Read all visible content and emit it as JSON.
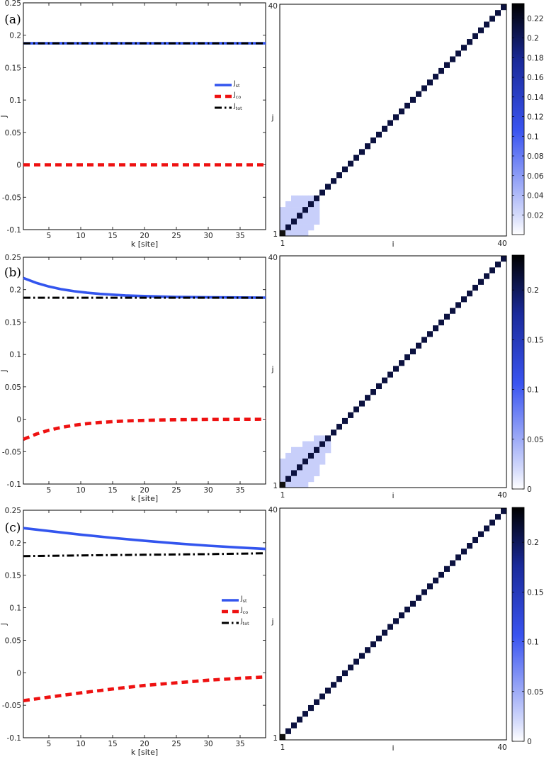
{
  "chart_data": [
    {
      "panel": "(a)",
      "type": "line",
      "xlabel": "k [site]",
      "ylabel": "J",
      "xlim": [
        1,
        39
      ],
      "ylim": [
        -0.1,
        0.25
      ],
      "xticks": [
        5,
        10,
        15,
        20,
        25,
        30,
        35
      ],
      "yticks": [
        -0.1,
        -0.05,
        0,
        0.05,
        0.1,
        0.15,
        0.2,
        0.25
      ],
      "legend": {
        "placement": "right",
        "entries": [
          {
            "main": "J",
            "sub": "st"
          },
          {
            "main": "J",
            "sub": "co"
          },
          {
            "main": "J",
            "sub": "tot"
          }
        ]
      },
      "series": [
        {
          "name": "J_st",
          "color": "#3355ee",
          "style": "solid",
          "x": [
            1,
            39
          ],
          "y": [
            0.1875,
            0.1875
          ]
        },
        {
          "name": "J_co",
          "color": "#ee1111",
          "style": "dashed",
          "x": [
            1,
            39
          ],
          "y": [
            0.0,
            0.0
          ]
        },
        {
          "name": "J_tot",
          "color": "#000000",
          "style": "dashdot",
          "x": [
            1,
            39
          ],
          "y": [
            0.1875,
            0.1875
          ]
        }
      ]
    },
    {
      "panel": "(b)",
      "type": "line",
      "xlabel": "k [site]",
      "ylabel": "J",
      "xlim": [
        1,
        39
      ],
      "ylim": [
        -0.1,
        0.25
      ],
      "xticks": [
        5,
        10,
        15,
        20,
        25,
        30,
        35
      ],
      "yticks": [
        -0.1,
        -0.05,
        0,
        0.05,
        0.1,
        0.15,
        0.2,
        0.25
      ],
      "legend": null,
      "series": [
        {
          "name": "J_st",
          "color": "#3355ee",
          "style": "solid",
          "x": [
            1,
            3,
            5,
            7,
            9,
            11,
            13,
            15,
            17,
            19,
            21,
            23,
            25,
            27,
            29,
            31,
            33,
            35,
            37,
            39
          ],
          "y": [
            0.218,
            0.2105,
            0.2048,
            0.2006,
            0.1975,
            0.1952,
            0.1935,
            0.1922,
            0.1911,
            0.1903,
            0.1897,
            0.1892,
            0.1888,
            0.1885,
            0.1883,
            0.1881,
            0.188,
            0.1879,
            0.1878,
            0.1877
          ]
        },
        {
          "name": "J_co",
          "color": "#ee1111",
          "style": "dashed",
          "x": [
            1,
            3,
            5,
            7,
            9,
            11,
            13,
            15,
            17,
            19,
            21,
            23,
            25,
            27,
            29,
            31,
            33,
            35,
            37,
            39
          ],
          "y": [
            -0.031,
            -0.023,
            -0.017,
            -0.0125,
            -0.0092,
            -0.0068,
            -0.005,
            -0.0037,
            -0.0027,
            -0.002,
            -0.0015,
            -0.0011,
            -0.0008,
            -0.0006,
            -0.0004,
            -0.0003,
            -0.0002,
            -0.0001,
            -0.0001,
            0.0
          ]
        },
        {
          "name": "J_tot",
          "color": "#000000",
          "style": "dashdot",
          "x": [
            1,
            39
          ],
          "y": [
            0.1875,
            0.1875
          ]
        }
      ]
    },
    {
      "panel": "(c)",
      "type": "line",
      "xlabel": "k [site]",
      "ylabel": "J",
      "xlim": [
        1,
        39
      ],
      "ylim": [
        -0.1,
        0.25
      ],
      "xticks": [
        5,
        10,
        15,
        20,
        25,
        30,
        35
      ],
      "yticks": [
        -0.1,
        -0.05,
        0,
        0.05,
        0.1,
        0.15,
        0.2,
        0.25
      ],
      "legend": {
        "placement": "right",
        "entries": [
          {
            "main": "J",
            "sub": "st"
          },
          {
            "main": "J",
            "sub": "co"
          },
          {
            "main": "J",
            "sub": "tot"
          }
        ]
      },
      "series": [
        {
          "name": "J_st",
          "color": "#3355ee",
          "style": "solid",
          "x": [
            1,
            5,
            10,
            15,
            20,
            25,
            30,
            35,
            39
          ],
          "y": [
            0.2225,
            0.218,
            0.2125,
            0.2075,
            0.203,
            0.199,
            0.1955,
            0.1925,
            0.1905
          ]
        },
        {
          "name": "J_co",
          "color": "#ee1111",
          "style": "dashed",
          "x": [
            1,
            5,
            10,
            15,
            20,
            25,
            30,
            35,
            39
          ],
          "y": [
            -0.043,
            -0.0375,
            -0.031,
            -0.025,
            -0.0195,
            -0.0155,
            -0.0115,
            -0.0085,
            -0.0065
          ]
        },
        {
          "name": "J_tot",
          "color": "#000000",
          "style": "dashdot",
          "x": [
            1,
            10,
            20,
            30,
            39
          ],
          "y": [
            0.1795,
            0.1805,
            0.1815,
            0.1825,
            0.1838
          ]
        }
      ]
    },
    {
      "panel": "(a)",
      "type": "heatmap",
      "xlabel": "i",
      "ylabel": "j",
      "n": 40,
      "corner_labels": {
        "x_start": "1",
        "x_end": "40",
        "y_start": "1",
        "y_end": "40"
      },
      "diagonal_value": 0.235,
      "diagonal_color": "#0c1240",
      "offdiag_cells": [
        [
          1,
          2
        ],
        [
          2,
          1
        ],
        [
          1,
          3
        ],
        [
          3,
          1
        ],
        [
          2,
          3
        ],
        [
          3,
          2
        ],
        [
          1,
          4
        ],
        [
          4,
          1
        ],
        [
          2,
          4
        ],
        [
          4,
          2
        ],
        [
          3,
          4
        ],
        [
          4,
          3
        ],
        [
          1,
          5
        ],
        [
          5,
          1
        ],
        [
          2,
          5
        ],
        [
          5,
          2
        ],
        [
          3,
          5
        ],
        [
          5,
          3
        ],
        [
          4,
          5
        ],
        [
          5,
          4
        ],
        [
          2,
          6
        ],
        [
          6,
          2
        ],
        [
          3,
          6
        ],
        [
          6,
          3
        ],
        [
          4,
          6
        ],
        [
          6,
          4
        ],
        [
          5,
          6
        ],
        [
          6,
          5
        ],
        [
          3,
          7
        ],
        [
          7,
          3
        ],
        [
          4,
          7
        ],
        [
          7,
          4
        ],
        [
          5,
          7
        ],
        [
          7,
          5
        ],
        [
          6,
          7
        ],
        [
          7,
          6
        ]
      ],
      "offdiag_value": 0.004,
      "colorbar": {
        "ticks": [
          0.02,
          0.04,
          0.06,
          0.08,
          0.1,
          0.12,
          0.14,
          0.16,
          0.18,
          0.2,
          0.22
        ],
        "labels": [
          "0.02",
          "0.04",
          "0.06",
          "0.08",
          "0.1",
          "0.12",
          "0.14",
          "0.16",
          "0.18",
          "0.2",
          "0.22"
        ],
        "range": [
          0.0,
          0.235
        ]
      }
    },
    {
      "panel": "(b)",
      "type": "heatmap",
      "xlabel": "i",
      "ylabel": "j",
      "n": 40,
      "corner_labels": {
        "x_start": "1",
        "x_end": "40",
        "y_start": "1",
        "y_end": "40"
      },
      "diagonal_value": 0.235,
      "diagonal_color": "#0c1240",
      "offdiag_cells": [
        [
          1,
          2
        ],
        [
          2,
          1
        ],
        [
          1,
          3
        ],
        [
          3,
          1
        ],
        [
          2,
          3
        ],
        [
          3,
          2
        ],
        [
          1,
          4
        ],
        [
          4,
          1
        ],
        [
          2,
          4
        ],
        [
          4,
          2
        ],
        [
          3,
          4
        ],
        [
          4,
          3
        ],
        [
          1,
          5
        ],
        [
          5,
          1
        ],
        [
          2,
          5
        ],
        [
          5,
          2
        ],
        [
          3,
          5
        ],
        [
          5,
          3
        ],
        [
          4,
          5
        ],
        [
          5,
          4
        ],
        [
          2,
          6
        ],
        [
          6,
          2
        ],
        [
          3,
          6
        ],
        [
          6,
          3
        ],
        [
          4,
          6
        ],
        [
          6,
          4
        ],
        [
          5,
          6
        ],
        [
          6,
          5
        ],
        [
          3,
          7
        ],
        [
          7,
          3
        ],
        [
          4,
          7
        ],
        [
          7,
          4
        ],
        [
          5,
          7
        ],
        [
          7,
          5
        ],
        [
          6,
          7
        ],
        [
          7,
          6
        ],
        [
          5,
          8
        ],
        [
          8,
          5
        ],
        [
          6,
          8
        ],
        [
          8,
          6
        ],
        [
          7,
          8
        ],
        [
          8,
          7
        ],
        [
          7,
          9
        ],
        [
          9,
          7
        ],
        [
          8,
          9
        ],
        [
          9,
          8
        ]
      ],
      "offdiag_value": 0.004,
      "colorbar": {
        "ticks": [
          0,
          0.05,
          0.1,
          0.15,
          0.2
        ],
        "labels": [
          "0",
          "0.05",
          "0.1",
          "0.15",
          "0.2"
        ],
        "range": [
          0.0,
          0.235
        ]
      }
    },
    {
      "panel": "(c)",
      "type": "heatmap",
      "xlabel": "i",
      "ylabel": "j",
      "n": 40,
      "corner_labels": {
        "x_start": "1",
        "x_end": "40",
        "y_start": "1",
        "y_end": "40"
      },
      "diagonal_value": 0.235,
      "diagonal_color": "#0c1240",
      "offdiag_cells": [],
      "offdiag_value": 0.0,
      "colorbar": {
        "ticks": [
          0,
          0.05,
          0.1,
          0.15,
          0.2
        ],
        "labels": [
          "0",
          "0.05",
          "0.1",
          "0.15",
          "0.2"
        ],
        "range": [
          0.0,
          0.235
        ]
      }
    }
  ]
}
